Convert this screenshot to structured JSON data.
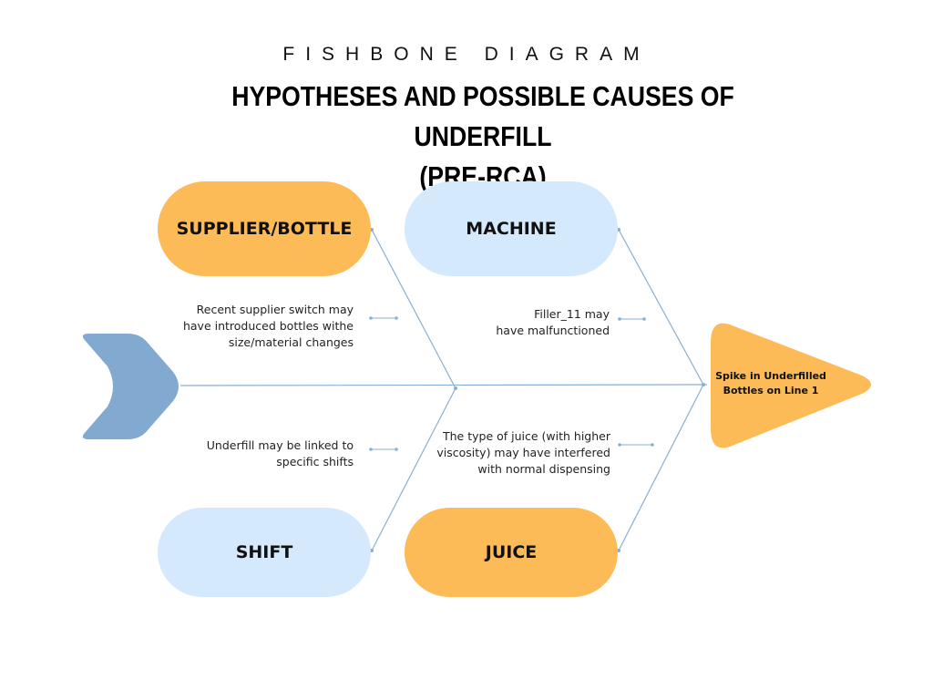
{
  "header": {
    "eyebrow": "FISHBONE DIAGRAM",
    "title_line1": "HYPOTHESES AND POSSIBLE CAUSES OF UNDERFILL",
    "title_line2": "(PRE-RCA)"
  },
  "problem": {
    "line1": "Spike in Underfilled",
    "line2": "Bottles on Line 1"
  },
  "categories": [
    {
      "label": "SUPPLIER/BOTTLE",
      "color": "#fdbb58"
    },
    {
      "label": "MACHINE",
      "color": "#d5e9fc"
    },
    {
      "label": "SHIFT",
      "color": "#d5e9fc"
    },
    {
      "label": "JUICE",
      "color": "#fdbb58"
    }
  ],
  "causes": {
    "supplier": {
      "lines": [
        "Recent supplier switch may",
        "have introduced bottles withe",
        "size/material changes"
      ]
    },
    "machine": {
      "lines": [
        "Filler_11 may",
        "have malfunctioned"
      ]
    },
    "shift": {
      "lines": [
        "Underfill may be linked to",
        "specific shifts"
      ]
    },
    "juice": {
      "lines": [
        "The type of juice (with higher",
        "viscosity) may have interfered",
        "with normal dispensing"
      ]
    }
  },
  "colors": {
    "spine": "#8aafd0",
    "tail": "#82a9d0",
    "head": "#fdbb58"
  }
}
